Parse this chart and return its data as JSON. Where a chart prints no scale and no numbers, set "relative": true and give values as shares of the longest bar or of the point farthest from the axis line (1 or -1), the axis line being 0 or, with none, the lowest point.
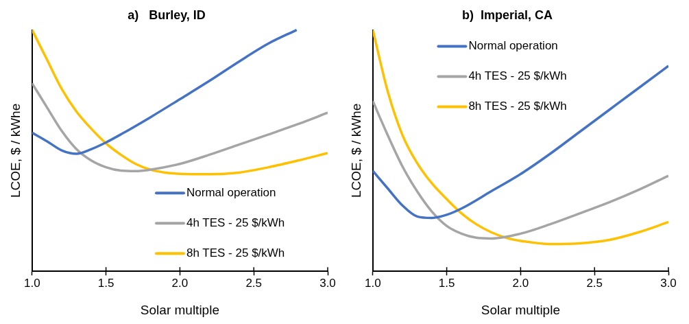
{
  "chart_data": [
    {
      "type": "line",
      "title": "a)   Burley, ID",
      "xlabel": "Solar multiple",
      "ylabel": "LCOE, $ / kWhe",
      "relative": true,
      "legend": "bottom right",
      "grid": false,
      "marker": "none",
      "line_style": "solid",
      "xlim": [
        1,
        3
      ],
      "xticks": [
        {
          "value": 1,
          "label": "1.0"
        },
        {
          "value": 1.5,
          "label": "1.5"
        },
        {
          "value": 2,
          "label": "2.0"
        },
        {
          "value": 2.5,
          "label": "2.5"
        },
        {
          "value": 3,
          "label": "3.0"
        }
      ],
      "series": [
        {
          "name": "Normal operation",
          "color": "#4472c4",
          "x": [
            1,
            1.1,
            1.2,
            1.3,
            1.4,
            1.5,
            1.6,
            1.8,
            2,
            2.2,
            2.4,
            2.6,
            2.79
          ],
          "values": [
            0.574,
            0.539,
            0.501,
            0.487,
            0.506,
            0.534,
            0.567,
            0.638,
            0.713,
            0.789,
            0.869,
            0.944,
            1
          ]
        },
        {
          "name": "4h TES - 25 $/kWh",
          "color": "#a5a5a5",
          "x": [
            1,
            1.1,
            1.2,
            1.3,
            1.4,
            1.5,
            1.6,
            1.7,
            1.8,
            2,
            2.2,
            2.4,
            2.6,
            2.8,
            3
          ],
          "values": [
            0.779,
            0.68,
            0.582,
            0.506,
            0.459,
            0.431,
            0.417,
            0.415,
            0.421,
            0.445,
            0.483,
            0.525,
            0.567,
            0.61,
            0.657
          ]
        },
        {
          "name": "8h TES - 25 $/kWh",
          "color": "#ffc000",
          "x": [
            1,
            1.1,
            1.2,
            1.3,
            1.4,
            1.5,
            1.6,
            1.7,
            1.8,
            1.9,
            2,
            2.2,
            2.4,
            2.6,
            2.8,
            3
          ],
          "values": [
            1,
            0.878,
            0.756,
            0.662,
            0.591,
            0.53,
            0.483,
            0.445,
            0.421,
            0.409,
            0.404,
            0.402,
            0.409,
            0.431,
            0.459,
            0.49
          ]
        }
      ]
    },
    {
      "type": "line",
      "title": "b)  Imperial, CA",
      "xlabel": "Solar multiple",
      "ylabel": "LCOE, $ / kWhe",
      "relative": true,
      "legend": "top",
      "grid": false,
      "marker": "none",
      "line_style": "solid",
      "xlim": [
        1,
        3
      ],
      "xticks": [
        {
          "value": 1,
          "label": "1.0"
        },
        {
          "value": 1.5,
          "label": "1.5"
        },
        {
          "value": 2,
          "label": "2.0"
        },
        {
          "value": 2.5,
          "label": "2.5"
        },
        {
          "value": 3,
          "label": "3.0"
        }
      ],
      "series": [
        {
          "name": "Normal operation",
          "color": "#4472c4",
          "x": [
            1,
            1.1,
            1.2,
            1.3,
            1.4,
            1.5,
            1.6,
            1.8,
            2,
            2.2,
            2.4,
            2.6,
            2.8,
            3
          ],
          "values": [
            0.416,
            0.344,
            0.273,
            0.227,
            0.221,
            0.234,
            0.26,
            0.331,
            0.403,
            0.487,
            0.578,
            0.669,
            0.76,
            0.851
          ]
        },
        {
          "name": "4h TES - 25 $/kWh",
          "color": "#a5a5a5",
          "x": [
            1,
            1.1,
            1.2,
            1.3,
            1.4,
            1.5,
            1.6,
            1.7,
            1.8,
            2,
            2.2,
            2.4,
            2.6,
            2.8,
            3
          ],
          "values": [
            0.705,
            0.565,
            0.435,
            0.331,
            0.247,
            0.188,
            0.156,
            0.139,
            0.136,
            0.156,
            0.195,
            0.24,
            0.286,
            0.338,
            0.396
          ]
        },
        {
          "name": "8h TES - 25 $/kWh",
          "color": "#ffc000",
          "x": [
            1,
            1.1,
            1.2,
            1.3,
            1.4,
            1.5,
            1.6,
            1.7,
            1.8,
            1.9,
            2,
            2.2,
            2.4,
            2.6,
            2.8,
            3
          ],
          "values": [
            1,
            0.747,
            0.565,
            0.448,
            0.364,
            0.299,
            0.24,
            0.195,
            0.162,
            0.139,
            0.126,
            0.113,
            0.116,
            0.13,
            0.162,
            0.204
          ]
        }
      ]
    }
  ]
}
